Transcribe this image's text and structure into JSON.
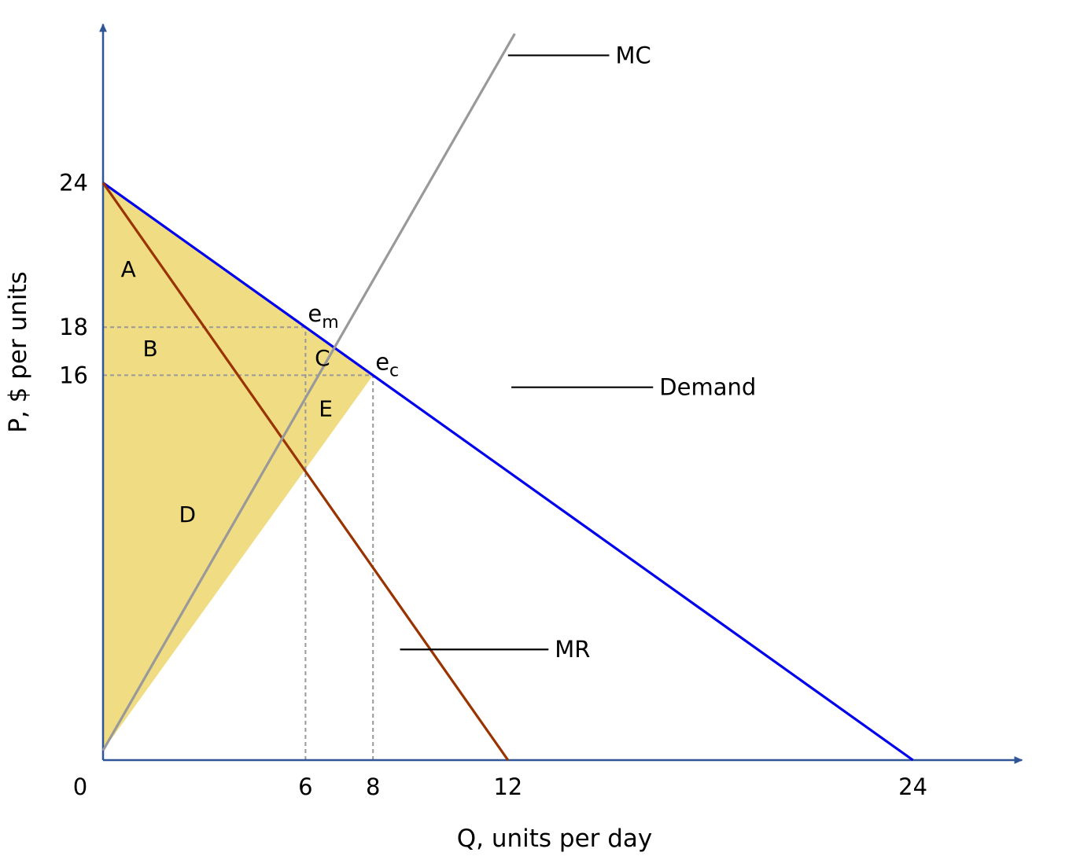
{
  "chart_data": {
    "type": "line",
    "xlabel": "Q, units per day",
    "ylabel": "P, $ per units",
    "xlim": [
      0,
      27
    ],
    "ylim": [
      0,
      30.5
    ],
    "x_ticks": [
      {
        "value": 0,
        "label": "0"
      },
      {
        "value": 6,
        "label": "6"
      },
      {
        "value": 8,
        "label": "8"
      },
      {
        "value": 12,
        "label": "12"
      },
      {
        "value": 24,
        "label": "24"
      }
    ],
    "y_ticks": [
      {
        "value": 24,
        "label": "24"
      },
      {
        "value": 18,
        "label": "18"
      },
      {
        "value": 16,
        "label": "16"
      }
    ],
    "grid": false,
    "series": [
      {
        "name": "Demand",
        "color": "#0000ee",
        "points": [
          [
            0,
            24
          ],
          [
            24,
            0
          ]
        ]
      },
      {
        "name": "MR",
        "color": "#993300",
        "points": [
          [
            0,
            24
          ],
          [
            12,
            0
          ]
        ]
      },
      {
        "name": "MC",
        "color": "#999999",
        "points": [
          [
            0,
            0.4
          ],
          [
            12.2,
            30.2
          ]
        ]
      }
    ],
    "shaded_region": {
      "color": "#f0dc82",
      "points": [
        [
          0,
          24
        ],
        [
          8,
          16
        ],
        [
          0,
          0.4
        ]
      ]
    },
    "guide_lines": [
      {
        "from": [
          0,
          18
        ],
        "to": [
          6,
          18
        ]
      },
      {
        "from": [
          0,
          16
        ],
        "to": [
          8,
          16
        ]
      },
      {
        "from": [
          6,
          0
        ],
        "to": [
          6,
          18
        ]
      },
      {
        "from": [
          8,
          0
        ],
        "to": [
          8,
          16
        ]
      }
    ],
    "region_labels": [
      {
        "text": "A",
        "x": 0.75,
        "y": 20.1
      },
      {
        "text": "B",
        "x": 1.4,
        "y": 16.8
      },
      {
        "text": "C",
        "x": 6.5,
        "y": 16.4
      },
      {
        "text": "E",
        "x": 6.6,
        "y": 14.3
      },
      {
        "text": "D",
        "x": 2.5,
        "y": 9.9
      }
    ],
    "points": [
      {
        "label": "e",
        "sub": "m",
        "x": 6,
        "y": 18
      },
      {
        "label": "e",
        "sub": "c",
        "x": 8,
        "y": 16
      }
    ],
    "curve_labels": [
      {
        "text": "MC",
        "series": "MC",
        "at": [
          12.0,
          29.3
        ],
        "label_x": 15.0
      },
      {
        "text": "Demand",
        "series": "Demand",
        "at": [
          12.1,
          15.5
        ],
        "label_x": 16.3
      },
      {
        "text": "MR",
        "series": "MR",
        "at": [
          8.8,
          4.6
        ],
        "label_x": 13.2
      }
    ]
  }
}
